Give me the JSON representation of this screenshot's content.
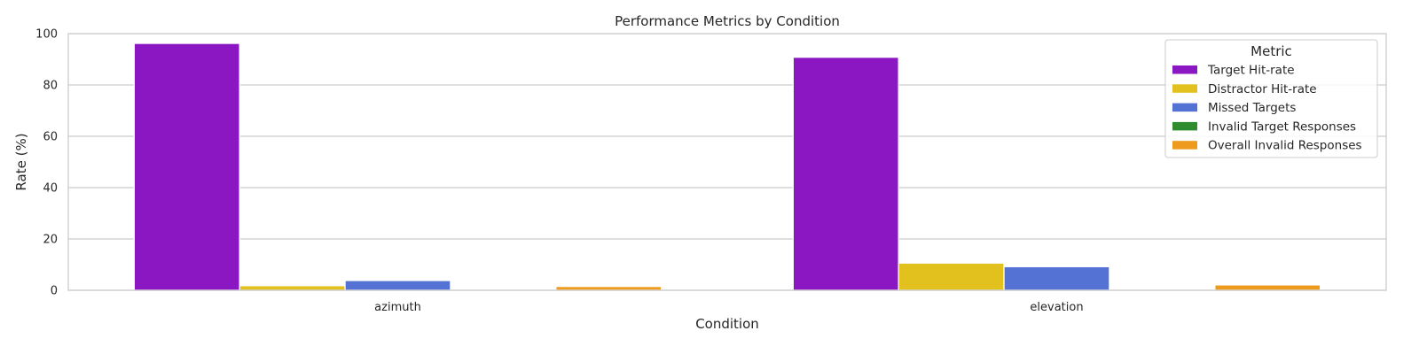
{
  "chart_data": {
    "type": "bar",
    "title": "Performance Metrics by Condition",
    "xlabel": "Condition",
    "ylabel": "Rate (%)",
    "ylim": [
      0,
      100
    ],
    "yticks": [
      0,
      20,
      40,
      60,
      80,
      100
    ],
    "grid": true,
    "categories": [
      "azimuth",
      "elevation"
    ],
    "legend": {
      "title": "Metric",
      "placement": "top-right"
    },
    "series": [
      {
        "name": "Target Hit-rate",
        "color": "#8a17c1",
        "values": [
          96.2,
          90.8
        ]
      },
      {
        "name": "Distractor Hit-rate",
        "color": "#e2c11f",
        "values": [
          1.8,
          10.6
        ]
      },
      {
        "name": "Missed Targets",
        "color": "#5472d3",
        "values": [
          3.8,
          9.2
        ]
      },
      {
        "name": "Invalid Target Responses",
        "color": "#2e8b2e",
        "values": [
          0,
          0
        ]
      },
      {
        "name": "Overall Invalid Responses",
        "color": "#ee9b1d",
        "values": [
          1.5,
          2.1
        ]
      }
    ]
  }
}
